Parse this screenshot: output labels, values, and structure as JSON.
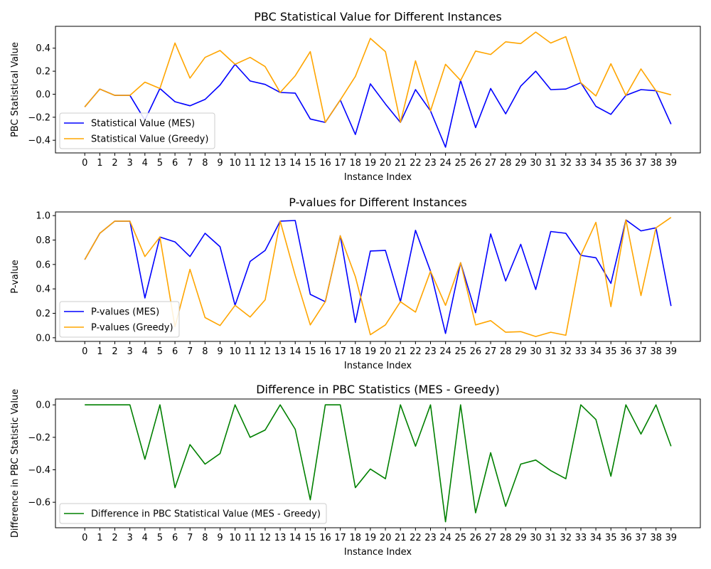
{
  "chart_data": [
    {
      "type": "line",
      "title": "PBC Statistical Value for Different Instances",
      "xlabel": "Instance Index",
      "ylabel": "PBC Statistical Value",
      "x": [
        0,
        1,
        2,
        3,
        4,
        5,
        6,
        7,
        8,
        9,
        10,
        11,
        12,
        13,
        14,
        15,
        16,
        17,
        18,
        19,
        20,
        21,
        22,
        23,
        24,
        25,
        26,
        27,
        28,
        29,
        30,
        31,
        32,
        33,
        34,
        35,
        36,
        37,
        38,
        39
      ],
      "xlim": [
        -1.95,
        40.95
      ],
      "ylim": [
        -0.51,
        0.59
      ],
      "yticks": [
        -0.4,
        -0.2,
        0.0,
        0.2,
        0.4
      ],
      "ytick_labels": [
        "−0.4",
        "−0.2",
        "0.0",
        "0.2",
        "0.4"
      ],
      "legend_position": "lower left",
      "series": [
        {
          "name": "Statistical Value (MES)",
          "color": "#0000ff",
          "values": [
            -0.11,
            0.045,
            -0.01,
            -0.01,
            -0.225,
            0.05,
            -0.065,
            -0.1,
            -0.045,
            0.08,
            0.26,
            0.115,
            0.085,
            0.015,
            0.01,
            -0.215,
            -0.245,
            -0.05,
            -0.35,
            0.09,
            -0.085,
            -0.245,
            0.04,
            -0.145,
            -0.46,
            0.12,
            -0.29,
            0.05,
            -0.17,
            0.07,
            0.2,
            0.04,
            0.045,
            0.1,
            -0.105,
            -0.175,
            -0.01,
            0.04,
            0.03,
            -0.26
          ]
        },
        {
          "name": "Statistical Value (Greedy)",
          "color": "#ffa500",
          "values": [
            -0.11,
            0.045,
            -0.01,
            -0.01,
            0.105,
            0.05,
            0.445,
            0.14,
            0.32,
            0.38,
            0.26,
            0.32,
            0.24,
            0.015,
            0.16,
            0.37,
            -0.245,
            -0.05,
            0.155,
            0.485,
            0.37,
            -0.245,
            0.29,
            -0.145,
            0.26,
            0.12,
            0.375,
            0.345,
            0.455,
            0.44,
            0.54,
            0.445,
            0.5,
            0.1,
            -0.015,
            0.265,
            -0.01,
            0.22,
            0.03,
            -0.005
          ]
        }
      ]
    },
    {
      "type": "line",
      "title": "P-values for Different Instances",
      "xlabel": "Instance Index",
      "ylabel": "P-value",
      "x": [
        0,
        1,
        2,
        3,
        4,
        5,
        6,
        7,
        8,
        9,
        10,
        11,
        12,
        13,
        14,
        15,
        16,
        17,
        18,
        19,
        20,
        21,
        22,
        23,
        24,
        25,
        26,
        27,
        28,
        29,
        30,
        31,
        32,
        33,
        34,
        35,
        36,
        37,
        38,
        39
      ],
      "xlim": [
        -1.95,
        40.95
      ],
      "ylim": [
        -0.03,
        1.03
      ],
      "yticks": [
        0.0,
        0.2,
        0.4,
        0.6,
        0.8,
        1.0
      ],
      "ytick_labels": [
        "0.0",
        "0.2",
        "0.4",
        "0.6",
        "0.8",
        "1.0"
      ],
      "legend_position": "lower left",
      "series": [
        {
          "name": "P-values (MES)",
          "color": "#0000ff",
          "values": [
            0.64,
            0.855,
            0.955,
            0.955,
            0.325,
            0.825,
            0.785,
            0.665,
            0.855,
            0.745,
            0.265,
            0.625,
            0.715,
            0.955,
            0.96,
            0.355,
            0.295,
            0.835,
            0.125,
            0.71,
            0.715,
            0.295,
            0.88,
            0.545,
            0.035,
            0.615,
            0.205,
            0.85,
            0.465,
            0.765,
            0.395,
            0.87,
            0.855,
            0.675,
            0.655,
            0.445,
            0.965,
            0.875,
            0.9,
            0.26
          ]
        },
        {
          "name": "P-values (Greedy)",
          "color": "#ffa500",
          "values": [
            0.64,
            0.855,
            0.955,
            0.955,
            0.665,
            0.825,
            0.09,
            0.56,
            0.165,
            0.1,
            0.265,
            0.17,
            0.31,
            0.955,
            0.51,
            0.105,
            0.295,
            0.835,
            0.5,
            0.025,
            0.105,
            0.295,
            0.21,
            0.545,
            0.265,
            0.615,
            0.105,
            0.14,
            0.045,
            0.05,
            0.01,
            0.045,
            0.02,
            0.675,
            0.945,
            0.255,
            0.965,
            0.345,
            0.9,
            0.985
          ]
        }
      ]
    },
    {
      "type": "line",
      "title": "Difference in PBC Statistics (MES - Greedy)",
      "xlabel": "Instance Index",
      "ylabel": "Difference in PBC Statistic Value",
      "x": [
        0,
        1,
        2,
        3,
        4,
        5,
        6,
        7,
        8,
        9,
        10,
        11,
        12,
        13,
        14,
        15,
        16,
        17,
        18,
        19,
        20,
        21,
        22,
        23,
        24,
        25,
        26,
        27,
        28,
        29,
        30,
        31,
        32,
        33,
        34,
        35,
        36,
        37,
        38,
        39
      ],
      "xlim": [
        -1.95,
        40.95
      ],
      "ylim": [
        -0.757,
        0.036
      ],
      "yticks": [
        -0.6,
        -0.4,
        -0.2,
        0.0
      ],
      "ytick_labels": [
        "−0.6",
        "−0.4",
        "−0.2",
        "0.0"
      ],
      "legend_position": "lower left",
      "series": [
        {
          "name": "Difference in PBC Statistical Value (MES - Greedy)",
          "color": "#008000",
          "values": [
            0,
            0,
            0,
            0,
            -0.335,
            0,
            -0.51,
            -0.245,
            -0.365,
            -0.3,
            0,
            -0.2,
            -0.155,
            0,
            -0.15,
            -0.585,
            0,
            0,
            -0.51,
            -0.395,
            -0.455,
            0,
            -0.255,
            0,
            -0.72,
            0,
            -0.665,
            -0.295,
            -0.625,
            -0.365,
            -0.34,
            -0.405,
            -0.455,
            0,
            -0.09,
            -0.44,
            0,
            -0.18,
            0,
            -0.255
          ]
        }
      ]
    }
  ]
}
